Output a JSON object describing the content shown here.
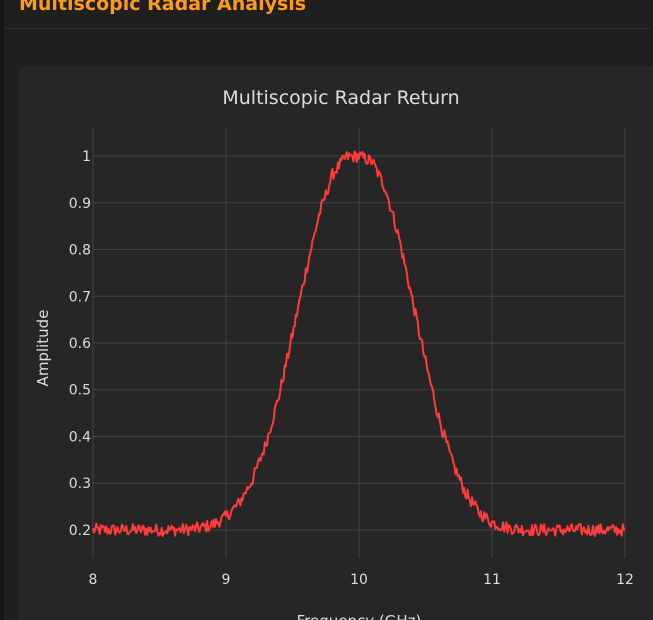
{
  "header": {
    "title": "Multiscopic Radar Analysis"
  },
  "colors": {
    "accent": "#ff9a1a",
    "series": "#ff3b3b",
    "grid": "#444444",
    "text": "#dddddd"
  },
  "chart_data": {
    "type": "line",
    "title": "Multiscopic Radar Return",
    "xlabel": "Frequency (GHz)",
    "ylabel": "Amplitude",
    "xlim": [
      8,
      12
    ],
    "ylim": [
      0.14,
      1.06
    ],
    "x_ticks": [
      8,
      9,
      10,
      11,
      12
    ],
    "x_tick_labels": [
      "8",
      "9",
      "10",
      "11",
      "12"
    ],
    "y_ticks": [
      0.2,
      0.3,
      0.4,
      0.5,
      0.6,
      0.7,
      0.8,
      0.9,
      1
    ],
    "y_tick_labels": [
      "0.2",
      "0.3",
      "0.4",
      "0.5",
      "0.6",
      "0.7",
      "0.8",
      "0.9",
      "1"
    ],
    "grid": true,
    "legend": "none",
    "series": [
      {
        "x": [
          8.0,
          8.1,
          8.2,
          8.3,
          8.4,
          8.5,
          8.6,
          8.7,
          8.8,
          8.9,
          9.0,
          9.1,
          9.2,
          9.3,
          9.4,
          9.5,
          9.6,
          9.7,
          9.8,
          9.9,
          10.0,
          10.1,
          10.2,
          10.3,
          10.4,
          10.5,
          10.6,
          10.7,
          10.8,
          10.9,
          11.0,
          11.1,
          11.2,
          11.3,
          11.4,
          11.5,
          11.6,
          11.7,
          11.8,
          11.9,
          12.0
        ],
        "y": [
          0.2,
          0.2,
          0.2,
          0.2,
          0.2,
          0.2,
          0.2,
          0.201,
          0.204,
          0.211,
          0.228,
          0.258,
          0.308,
          0.384,
          0.489,
          0.618,
          0.753,
          0.874,
          0.96,
          0.998,
          1.0,
          0.988,
          0.93,
          0.826,
          0.694,
          0.56,
          0.44,
          0.346,
          0.28,
          0.238,
          0.216,
          0.206,
          0.202,
          0.2,
          0.2,
          0.2,
          0.2,
          0.2,
          0.2,
          0.2,
          0.2
        ]
      }
    ]
  }
}
